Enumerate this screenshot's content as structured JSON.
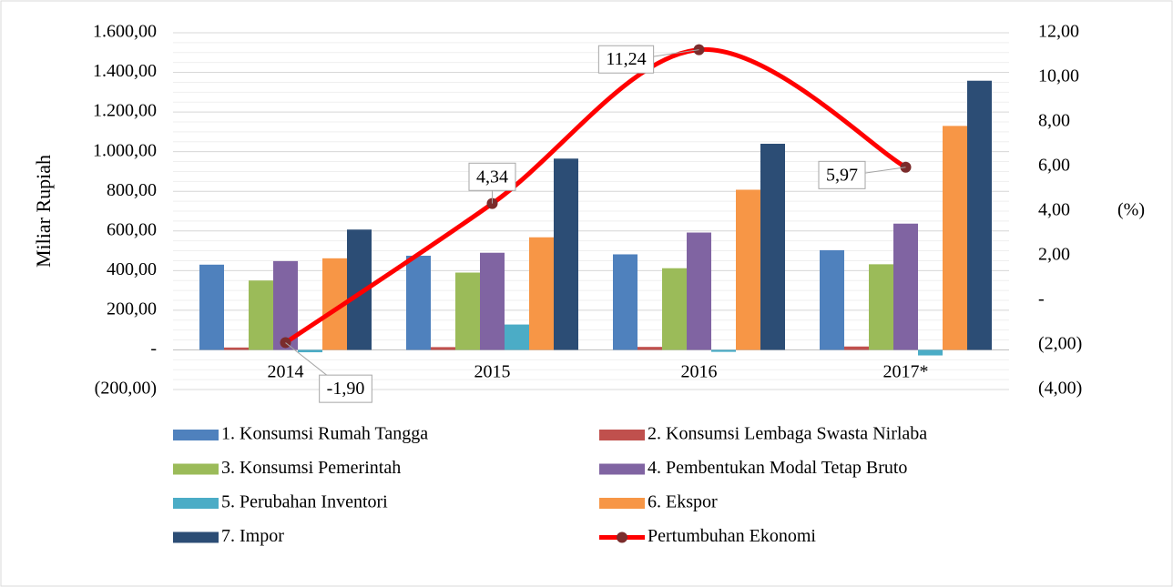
{
  "chart_data": {
    "type": "bar",
    "y_label": "Miliar Rupiah",
    "y2_label": "(%)",
    "categories": [
      "2014",
      "2015",
      "2016",
      "2017*"
    ],
    "series": [
      {
        "name": "1. Konsumsi Rumah Tangga",
        "color": "#4f81bd",
        "values": [
          430,
          475,
          482,
          503
        ]
      },
      {
        "name": "2. Konsumsi Lembaga Swasta Nirlaba",
        "color": "#c0504d",
        "values": [
          12,
          14,
          15,
          17
        ]
      },
      {
        "name": "3. Konsumsi Pemerintah",
        "color": "#9bbb59",
        "values": [
          350,
          390,
          412,
          432
        ]
      },
      {
        "name": "4. Pembentukan Modal Tetap Bruto",
        "color": "#8064a2",
        "values": [
          448,
          490,
          592,
          637
        ]
      },
      {
        "name": "5. Perubahan Inventori",
        "color": "#4bacc6",
        "values": [
          -12,
          128,
          -10,
          -28
        ]
      },
      {
        "name": "6. Ekspor",
        "color": "#f79646",
        "values": [
          462,
          568,
          808,
          1130
        ]
      },
      {
        "name": "7. Impor",
        "color": "#2c4d75",
        "values": [
          607,
          965,
          1040,
          1358
        ]
      },
      {
        "name": "Pertumbuhan Ekonomi",
        "type": "line",
        "axis": "y2",
        "color": "#ff0000",
        "marker_color": "#7b2c2c",
        "values": [
          -1.9,
          4.34,
          11.24,
          5.97
        ],
        "value_labels": [
          "-1,90",
          "4,34",
          "11,24",
          "5,97"
        ]
      }
    ],
    "ylim": [
      -200,
      1600
    ],
    "yticks": [
      {
        "value": -200,
        "label": "(200,00)"
      },
      {
        "value": 0,
        "label": "-"
      },
      {
        "value": 200,
        "label": "200,00"
      },
      {
        "value": 400,
        "label": "400,00"
      },
      {
        "value": 600,
        "label": "600,00"
      },
      {
        "value": 800,
        "label": "800,00"
      },
      {
        "value": 1000,
        "label": "1.000,00"
      },
      {
        "value": 1200,
        "label": "1.200,00"
      },
      {
        "value": 1400,
        "label": "1.400,00"
      },
      {
        "value": 1600,
        "label": "1.600,00"
      }
    ],
    "y2lim": [
      -4,
      12
    ],
    "y2ticks": [
      {
        "value": -4,
        "label": "(4,00)"
      },
      {
        "value": -2,
        "label": "(2,00)"
      },
      {
        "value": 0,
        "label": "-"
      },
      {
        "value": 2,
        "label": "2,00"
      },
      {
        "value": 4,
        "label": "4,00"
      },
      {
        "value": 6,
        "label": "6,00"
      },
      {
        "value": 8,
        "label": "8,00"
      },
      {
        "value": 10,
        "label": "10,00"
      },
      {
        "value": 12,
        "label": "12,00"
      }
    ],
    "grid": true
  }
}
